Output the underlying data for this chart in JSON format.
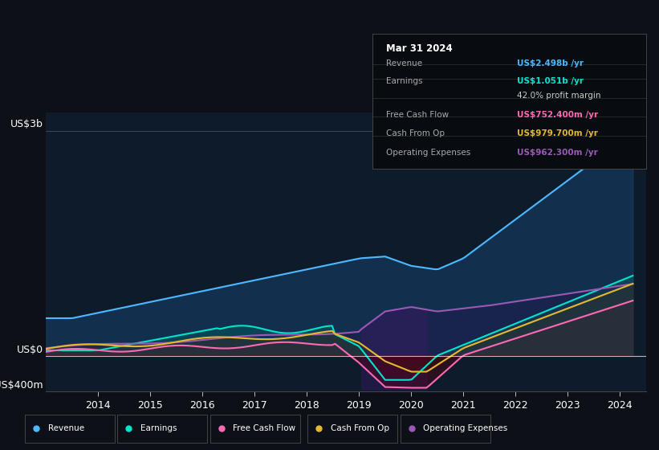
{
  "bg_color": "#0d1117",
  "plot_bg_color": "#0d1b2a",
  "ylabel_top": "US$3b",
  "ylabel_zero": "US$0",
  "ylabel_neg": "-US$400m",
  "series_colors": {
    "revenue": "#4db8ff",
    "earnings": "#00e5cc",
    "free_cash_flow": "#ff69b4",
    "cash_from_op": "#e6b830",
    "operating_expenses": "#9b59b6"
  },
  "legend_items": [
    {
      "label": "Revenue",
      "color": "#4db8ff"
    },
    {
      "label": "Earnings",
      "color": "#00e5cc"
    },
    {
      "label": "Free Cash Flow",
      "color": "#ff69b4"
    },
    {
      "label": "Cash From Op",
      "color": "#e6b830"
    },
    {
      "label": "Operating Expenses",
      "color": "#9b59b6"
    }
  ],
  "info_box_date": "Mar 31 2024",
  "info_rows": [
    {
      "label": "Revenue",
      "value": "US$2.498b",
      "unit": " /yr",
      "color": "#4db8ff"
    },
    {
      "label": "Earnings",
      "value": "US$1.051b",
      "unit": " /yr",
      "color": "#00e5cc"
    },
    {
      "label": "",
      "value": "42.0%",
      "unit": " profit margin",
      "color": "#ffffff"
    },
    {
      "label": "Free Cash Flow",
      "value": "US$752.400m",
      "unit": " /yr",
      "color": "#ff69b4"
    },
    {
      "label": "Cash From Op",
      "value": "US$979.700m",
      "unit": " /yr",
      "color": "#e6b830"
    },
    {
      "label": "Operating Expenses",
      "value": "US$962.300m",
      "unit": " /yr",
      "color": "#9b59b6"
    }
  ]
}
